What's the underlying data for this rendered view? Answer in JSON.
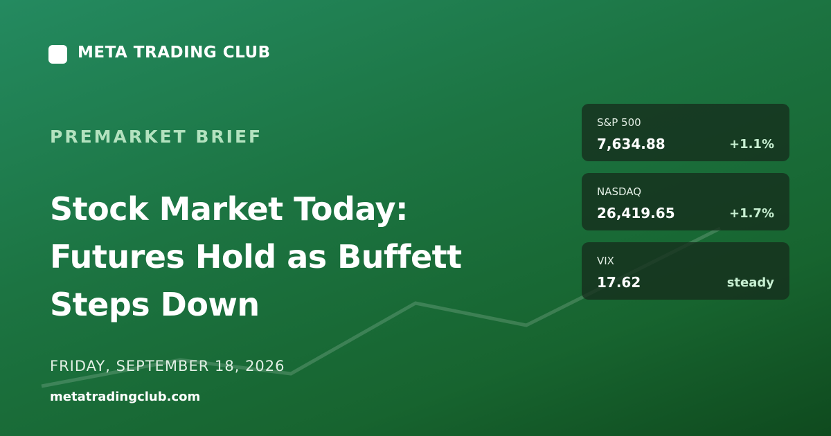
{
  "brand": "META TRADING CLUB",
  "kicker": "PREMARKET BRIEF",
  "headline": [
    "Stock Market Today:",
    "Futures Hold as Buffett",
    "Steps Down"
  ],
  "date": "FRIDAY, SEPTEMBER 18, 2026",
  "url": "metatradingclub.com",
  "tickers": [
    {
      "name": "S&P 500",
      "value": "7,634.88",
      "change": "+1.1%"
    },
    {
      "name": "NASDAQ",
      "value": "26,419.65",
      "change": "+1.7%"
    },
    {
      "name": "VIX",
      "value": "17.62",
      "change": "steady"
    }
  ]
}
